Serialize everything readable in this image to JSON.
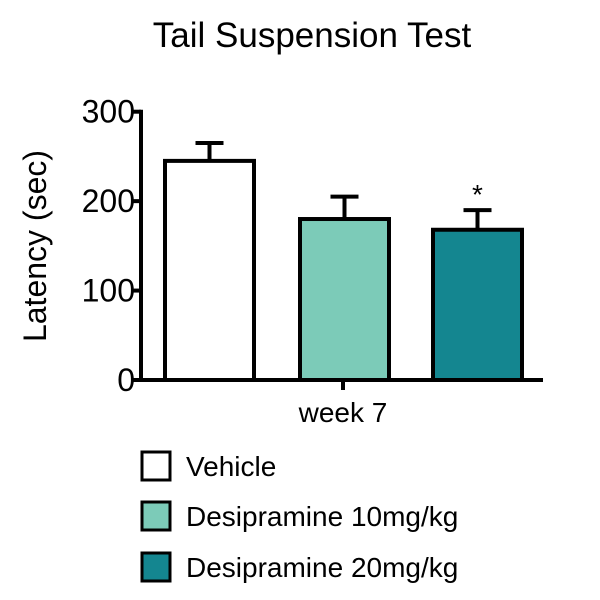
{
  "chart_data": {
    "type": "bar",
    "title": "Tail Suspension Test",
    "xlabel": "",
    "ylabel": "Latency (sec)",
    "ylim": [
      0,
      300
    ],
    "yticks": [
      "0",
      "100",
      "200",
      "300"
    ],
    "categories": [
      "week 7"
    ],
    "grid": false,
    "legend_position": "bottom",
    "series": [
      {
        "name": "Vehicle",
        "values": [
          245
        ],
        "error": [
          20
        ],
        "color": "#ffffff",
        "annotation": ""
      },
      {
        "name": "Desipramine 10mg/kg",
        "values": [
          180
        ],
        "error": [
          25
        ],
        "color": "#7ccbb8",
        "annotation": ""
      },
      {
        "name": "Desipramine 20mg/kg",
        "values": [
          168
        ],
        "error": [
          22
        ],
        "color": "#148690",
        "annotation": "*"
      }
    ]
  }
}
